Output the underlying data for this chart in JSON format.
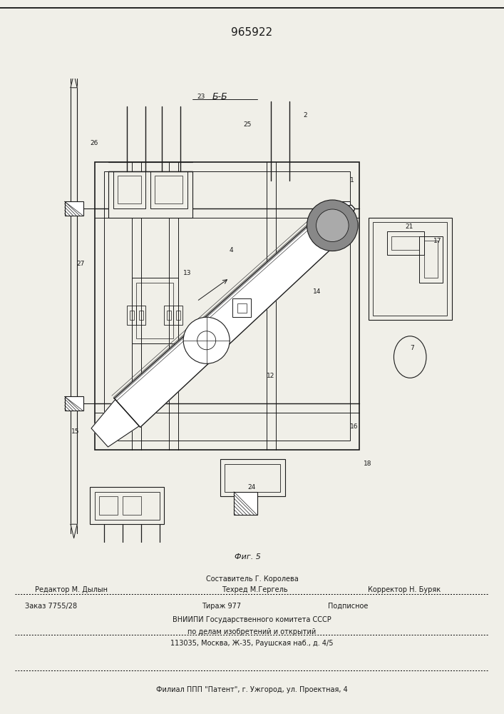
{
  "patent_number": "965922",
  "bg_color": "#f0efe8",
  "line_color": "#1a1a1a",
  "fig_label": "Фиг. 5",
  "section_label": "Б-Б",
  "footer": {
    "line1_center": "Составитель Г. Королева",
    "line2_left": "Редактор М. Дылын",
    "line2_center": "Техред М.Гергель",
    "line2_right": "Корректор Н. Буряк",
    "line3_left": "Заказ 7755/28",
    "line3_center": "Тираж 977",
    "line3_right": "Подписное",
    "line4": "ВНИИПИ Государственного комитета СССР",
    "line5": "по делам изобретений и открытий",
    "line6": "113035, Москва, Ж-35, Раушская наб., д. 4/5",
    "line7": "Филиал ППП \"Патент\", г. Ужгород, ул. Проектная, 4"
  }
}
